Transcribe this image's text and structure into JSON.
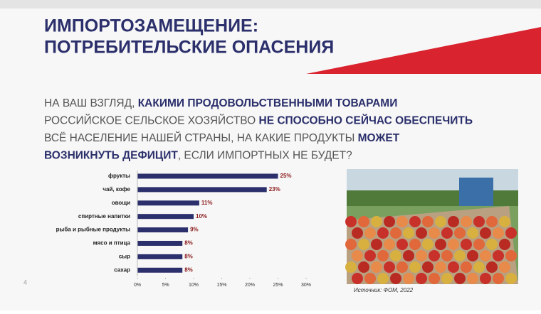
{
  "slide": {
    "title_lines": [
      "ИМПОРТОЗАМЕЩЕНИЕ:",
      "ПОТРЕБИТЕЛЬСКИЕ ОПАСЕНИЯ"
    ],
    "question": [
      [
        {
          "text": "НА ВАШ ВЗГЛЯД, ",
          "bold": false
        },
        {
          "text": "КАКИМИ ПРОДОВОЛЬСТВЕННЫМИ ТОВАРАМИ",
          "bold": true
        }
      ],
      [
        {
          "text": "РОССИЙСКОЕ СЕЛЬСКОЕ ХОЗЯЙСТВО ",
          "bold": false
        },
        {
          "text": "НЕ СПОСОБНО СЕЙЧАС ОБЕСПЕЧИТЬ",
          "bold": true
        }
      ],
      [
        {
          "text": "ВСЁ НАСЕЛЕНИЕ НАШЕЙ СТРАНЫ,  НА КАКИЕ ПРОДУКТЫ ",
          "bold": false
        },
        {
          "text": "МОЖЕТ",
          "bold": true
        }
      ],
      [
        {
          "text": "ВОЗНИКНУТЬ ДЕФИЦИТ",
          "bold": true
        },
        {
          "text": ",  ЕСЛИ ИМПОРТНЫХ НЕ БУДЕТ?",
          "bold": false
        }
      ]
    ],
    "source": "Источник: ФОМ, 2022",
    "page_number": "4"
  },
  "chart_data": {
    "type": "hbar",
    "categories": [
      "фрукты",
      "чай, кофе",
      "овощи",
      "спиртные напитки",
      "рыба и рыбные продукты",
      "мясо и птица",
      "сыр",
      "сахар"
    ],
    "values": [
      25,
      23,
      11,
      10,
      9,
      8,
      8,
      8
    ],
    "value_labels": [
      "25%",
      "23%",
      "11%",
      "10%",
      "9%",
      "8%",
      "8%",
      "8%"
    ],
    "color": "#2b2f6b",
    "label_color": "#8b1a1a",
    "xlim": [
      0,
      30
    ],
    "xticks": [
      {
        "value": 0,
        "label": "0%"
      },
      {
        "value": 5,
        "label": "5%"
      },
      {
        "value": 10,
        "label": "10%"
      },
      {
        "value": 15,
        "label": "15%"
      },
      {
        "value": 20,
        "label": "20%"
      },
      {
        "value": 25,
        "label": "25%"
      },
      {
        "value": 30,
        "label": "30%"
      }
    ]
  }
}
